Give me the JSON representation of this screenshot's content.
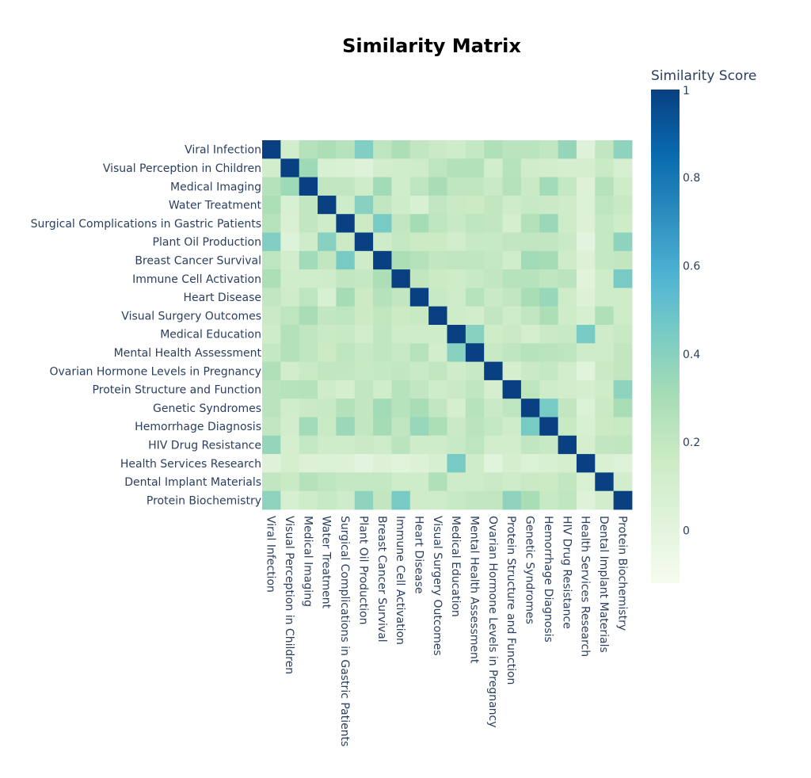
{
  "chart_data": {
    "type": "heatmap",
    "title": "Similarity Matrix",
    "colorbar_title": "Similarity Score",
    "colorbar_ticks": [
      1,
      0.8,
      0.6,
      0.4,
      0.2,
      0
    ],
    "zrange": [
      -0.12,
      1
    ],
    "colorscale": [
      [
        0,
        "#f7fcf0"
      ],
      [
        0.125,
        "#e0f3db"
      ],
      [
        0.25,
        "#ccebc5"
      ],
      [
        0.375,
        "#a8ddb5"
      ],
      [
        0.5,
        "#7bccc4"
      ],
      [
        0.625,
        "#4eb3d3"
      ],
      [
        0.75,
        "#2b8cbe"
      ],
      [
        0.875,
        "#0868ac"
      ],
      [
        1,
        "#084081"
      ]
    ],
    "labels": [
      "Viral Infection",
      "Visual Perception in Children",
      "Medical Imaging",
      "Water Treatment",
      "Surgical Complications in Gastric Patients",
      "Plant Oil Production",
      "Breast Cancer Survival",
      "Immune Cell Activation",
      "Heart Disease",
      "Visual Surgery Outcomes",
      "Medical Education",
      "Mental Health Assessment",
      "Ovarian Hormone Levels in Pregnancy",
      "Protein Structure and Function",
      "Genetic Syndromes",
      "Hemorrhage Diagnosis",
      "HIV Drug Resistance",
      "Health Services Research",
      "Dental Implant Materials",
      "Protein Biochemistry"
    ],
    "matrix": [
      [
        1.0,
        0.12,
        0.25,
        0.28,
        0.24,
        0.42,
        0.22,
        0.28,
        0.2,
        0.17,
        0.14,
        0.19,
        0.27,
        0.23,
        0.23,
        0.2,
        0.36,
        0.03,
        0.2,
        0.38
      ],
      [
        0.12,
        1.0,
        0.33,
        0.08,
        0.07,
        0.04,
        0.12,
        0.13,
        0.15,
        0.22,
        0.26,
        0.26,
        0.12,
        0.24,
        0.13,
        0.12,
        0.1,
        0.1,
        0.17,
        0.09
      ],
      [
        0.25,
        0.33,
        1.0,
        0.2,
        0.2,
        0.14,
        0.32,
        0.13,
        0.22,
        0.3,
        0.21,
        0.21,
        0.17,
        0.25,
        0.17,
        0.32,
        0.19,
        0.05,
        0.25,
        0.14
      ],
      [
        0.28,
        0.08,
        0.2,
        1.0,
        0.15,
        0.4,
        0.2,
        0.15,
        0.08,
        0.2,
        0.17,
        0.16,
        0.2,
        0.14,
        0.18,
        0.17,
        0.15,
        0.06,
        0.22,
        0.18
      ],
      [
        0.24,
        0.07,
        0.2,
        0.15,
        1.0,
        0.16,
        0.45,
        0.2,
        0.31,
        0.22,
        0.18,
        0.22,
        0.2,
        0.1,
        0.26,
        0.34,
        0.15,
        0.05,
        0.19,
        0.15
      ],
      [
        0.42,
        0.04,
        0.14,
        0.4,
        0.16,
        1.0,
        0.14,
        0.19,
        0.16,
        0.16,
        0.12,
        0.18,
        0.18,
        0.2,
        0.2,
        0.2,
        0.17,
        0.0,
        0.19,
        0.38
      ],
      [
        0.22,
        0.12,
        0.32,
        0.2,
        0.45,
        0.14,
        1.0,
        0.28,
        0.25,
        0.2,
        0.21,
        0.21,
        0.19,
        0.13,
        0.32,
        0.31,
        0.15,
        0.05,
        0.19,
        0.2
      ],
      [
        0.28,
        0.13,
        0.13,
        0.15,
        0.2,
        0.19,
        0.28,
        1.0,
        0.2,
        0.16,
        0.15,
        0.18,
        0.2,
        0.24,
        0.24,
        0.21,
        0.23,
        0.02,
        0.15,
        0.45
      ],
      [
        0.2,
        0.15,
        0.22,
        0.08,
        0.31,
        0.16,
        0.25,
        0.2,
        1.0,
        0.18,
        0.14,
        0.24,
        0.17,
        0.2,
        0.3,
        0.35,
        0.14,
        0.05,
        0.14,
        0.14
      ],
      [
        0.17,
        0.22,
        0.3,
        0.2,
        0.22,
        0.16,
        0.2,
        0.16,
        0.18,
        1.0,
        0.14,
        0.12,
        0.2,
        0.14,
        0.2,
        0.28,
        0.15,
        0.09,
        0.27,
        0.15
      ],
      [
        0.14,
        0.26,
        0.21,
        0.17,
        0.18,
        0.12,
        0.21,
        0.15,
        0.14,
        0.14,
        1.0,
        0.4,
        0.14,
        0.17,
        0.1,
        0.17,
        0.18,
        0.45,
        0.14,
        0.18
      ],
      [
        0.19,
        0.26,
        0.21,
        0.16,
        0.22,
        0.18,
        0.21,
        0.18,
        0.24,
        0.12,
        0.4,
        1.0,
        0.18,
        0.21,
        0.24,
        0.23,
        0.22,
        0.14,
        0.14,
        0.2
      ],
      [
        0.27,
        0.12,
        0.17,
        0.2,
        0.2,
        0.18,
        0.19,
        0.2,
        0.17,
        0.2,
        0.14,
        0.18,
        1.0,
        0.1,
        0.17,
        0.19,
        0.12,
        0.02,
        0.17,
        0.2
      ],
      [
        0.23,
        0.24,
        0.25,
        0.14,
        0.1,
        0.2,
        0.13,
        0.24,
        0.2,
        0.14,
        0.17,
        0.21,
        0.1,
        1.0,
        0.22,
        0.14,
        0.12,
        0.1,
        0.15,
        0.38
      ],
      [
        0.23,
        0.13,
        0.17,
        0.18,
        0.26,
        0.2,
        0.32,
        0.24,
        0.3,
        0.2,
        0.1,
        0.24,
        0.17,
        0.22,
        1.0,
        0.45,
        0.2,
        0.06,
        0.17,
        0.3
      ],
      [
        0.2,
        0.12,
        0.32,
        0.17,
        0.34,
        0.2,
        0.31,
        0.21,
        0.35,
        0.28,
        0.17,
        0.23,
        0.19,
        0.14,
        0.45,
        1.0,
        0.18,
        0.08,
        0.16,
        0.18
      ],
      [
        0.36,
        0.1,
        0.19,
        0.15,
        0.15,
        0.17,
        0.15,
        0.23,
        0.14,
        0.15,
        0.18,
        0.22,
        0.12,
        0.12,
        0.2,
        0.18,
        1.0,
        0.1,
        0.2,
        0.21
      ],
      [
        0.03,
        0.1,
        0.05,
        0.06,
        0.05,
        0.0,
        0.05,
        0.02,
        0.05,
        0.09,
        0.45,
        0.14,
        0.02,
        0.1,
        0.06,
        0.08,
        0.1,
        1.0,
        0.07,
        0.04
      ],
      [
        0.2,
        0.17,
        0.25,
        0.22,
        0.19,
        0.19,
        0.19,
        0.15,
        0.14,
        0.27,
        0.14,
        0.14,
        0.17,
        0.15,
        0.17,
        0.16,
        0.2,
        0.07,
        1.0,
        0.12
      ],
      [
        0.38,
        0.09,
        0.14,
        0.18,
        0.15,
        0.38,
        0.2,
        0.45,
        0.14,
        0.15,
        0.18,
        0.2,
        0.2,
        0.38,
        0.3,
        0.18,
        0.21,
        0.04,
        0.12,
        1.0
      ]
    ]
  }
}
